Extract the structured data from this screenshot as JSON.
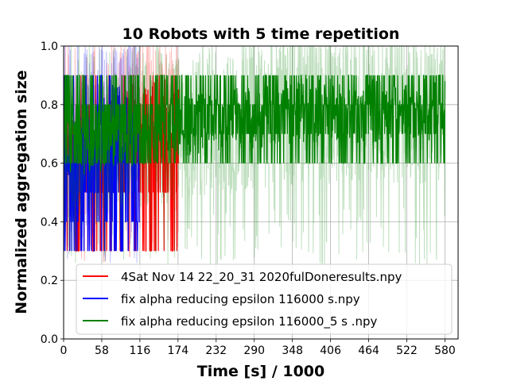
{
  "chart_data": {
    "type": "line",
    "title": "10 Robots with 5 time repetition",
    "xlabel": "Time [s] / 1000",
    "ylabel": "Normalized aggregation size",
    "xlim": [
      0,
      600
    ],
    "ylim": [
      0.0,
      1.0
    ],
    "x_ticks": [
      "0",
      "58",
      "116",
      "174",
      "232",
      "290",
      "348",
      "406",
      "464",
      "522",
      "580"
    ],
    "x_tick_values": [
      0,
      58,
      116,
      174,
      232,
      290,
      348,
      406,
      464,
      522,
      580
    ],
    "y_ticks": [
      "0.0",
      "0.2",
      "0.4",
      "0.6",
      "0.8",
      "1.0"
    ],
    "y_tick_values": [
      0.0,
      0.2,
      0.4,
      0.6,
      0.8,
      1.0
    ],
    "grid": true,
    "legend_position": "lower-right",
    "series": [
      {
        "name": "4Sat Nov 14 22_20_31 2020fulDoneresults.npy",
        "color": "#ff0000",
        "x_range": [
          0,
          175
        ],
        "level_start": 0.62,
        "level_end": 0.78,
        "upper_values": [
          0.3,
          0.5,
          0.6,
          0.7,
          0.8,
          0.9
        ],
        "lower_values": [
          0.3,
          0.5,
          0.6
        ]
      },
      {
        "name": "fix alpha reducing epsilon  116000 s.npy",
        "color": "#0000ff",
        "x_range": [
          0,
          116
        ],
        "level_start": 0.62,
        "level_end": 0.76,
        "upper_values": [
          0.3,
          0.4,
          0.5,
          0.6,
          0.7,
          0.8,
          0.9
        ],
        "lower_values": [
          0.3,
          0.4,
          0.5,
          0.6
        ]
      },
      {
        "name": "fix alpha reducing epsilon  116000_5 s .npy",
        "color": "#008000",
        "x_range": [
          0,
          580
        ],
        "level_start": 0.66,
        "level_end": 0.78,
        "upper_values": [
          0.8,
          0.9
        ],
        "lower_values": [
          0.6,
          0.7
        ]
      }
    ]
  }
}
